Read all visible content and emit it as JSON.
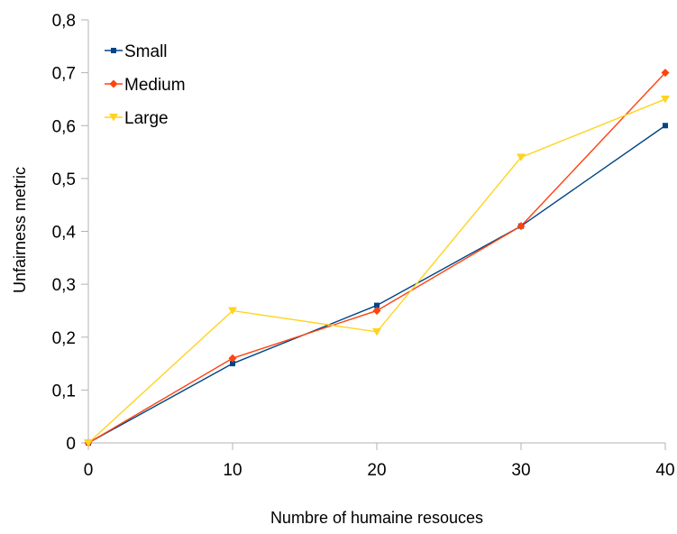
{
  "chart_data": {
    "type": "line",
    "title": "",
    "xlabel": "Numbre of humaine resouces",
    "ylabel": "Unfairness metric",
    "x": [
      0,
      10,
      20,
      30,
      40
    ],
    "xlim": [
      0,
      40
    ],
    "ylim": [
      0,
      0.8
    ],
    "x_ticks": [
      "0",
      "10",
      "20",
      "30",
      "40"
    ],
    "y_ticks": [
      "0",
      "0,1",
      "0,2",
      "0,3",
      "0,4",
      "0,5",
      "0,6",
      "0,7",
      "0,8"
    ],
    "grid": false,
    "legend_position": "top-left",
    "series": [
      {
        "name": "Small",
        "color": "#004586",
        "marker": "square",
        "values": [
          0,
          0.15,
          0.26,
          0.41,
          0.6
        ]
      },
      {
        "name": "Medium",
        "color": "#ff420e",
        "marker": "diamond",
        "values": [
          0,
          0.16,
          0.25,
          0.41,
          0.7
        ]
      },
      {
        "name": "Large",
        "color": "#ffd320",
        "marker": "triangle",
        "values": [
          0,
          0.25,
          0.21,
          0.54,
          0.65
        ]
      }
    ]
  }
}
